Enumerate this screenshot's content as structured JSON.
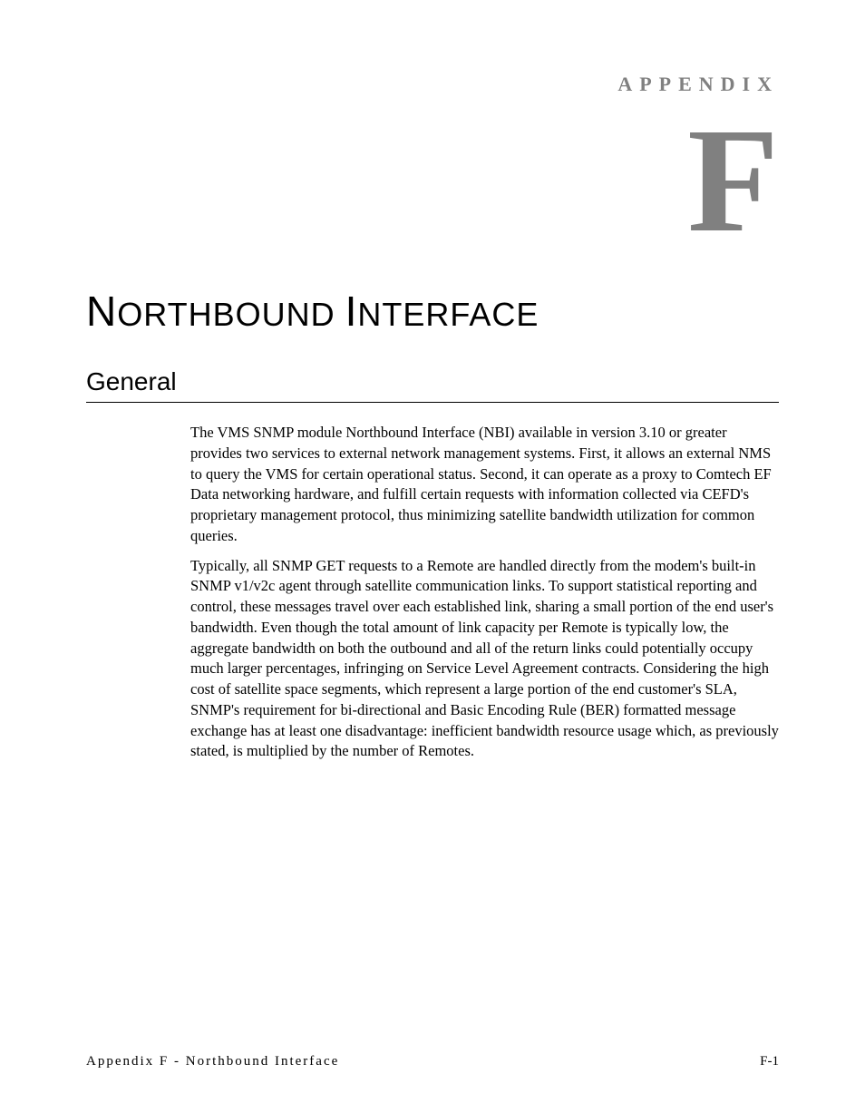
{
  "appendix_label": "APPENDIX",
  "appendix_letter": "F",
  "chapter_title_first1": "N",
  "chapter_title_rest1": "ORTHBOUND",
  "chapter_title_first2": "I",
  "chapter_title_rest2": "NTERFACE",
  "section_title": "General",
  "paragraph1": "The VMS SNMP module Northbound Interface (NBI) available in version 3.10 or greater provides two services to external network management systems. First, it allows an external NMS to query the VMS for certain operational status. Second, it can operate as a proxy to Comtech EF Data networking hardware, and fulfill certain requests with information collected via CEFD's proprietary management protocol, thus minimizing satellite bandwidth utilization for common queries.",
  "paragraph2": "Typically, all SNMP GET requests to a Remote are handled directly from the modem's built-in SNMP v1/v2c agent through satellite communication links. To support statistical reporting and control, these messages travel over each established link, sharing a small portion of the end user's bandwidth. Even though the total amount of link capacity per Remote is typically low, the aggregate bandwidth on both the outbound and all of the return links could potentially occupy much larger percentages, infringing on Service Level Agreement contracts. Considering the high cost of satellite space segments, which represent a large portion of the end customer's SLA, SNMP's requirement for bi-directional and Basic Encoding Rule (BER) formatted message exchange has at least one disadvantage: inefficient bandwidth resource usage which, as previously stated, is multiplied by the number of Remotes.",
  "footer_left": "Appendix F - Northbound Interface",
  "footer_right": "F-1",
  "colors": {
    "text_gray": "#808080",
    "text_black": "#000000",
    "background": "#ffffff"
  },
  "fonts": {
    "serif": "Times New Roman",
    "sans": "Arial"
  }
}
